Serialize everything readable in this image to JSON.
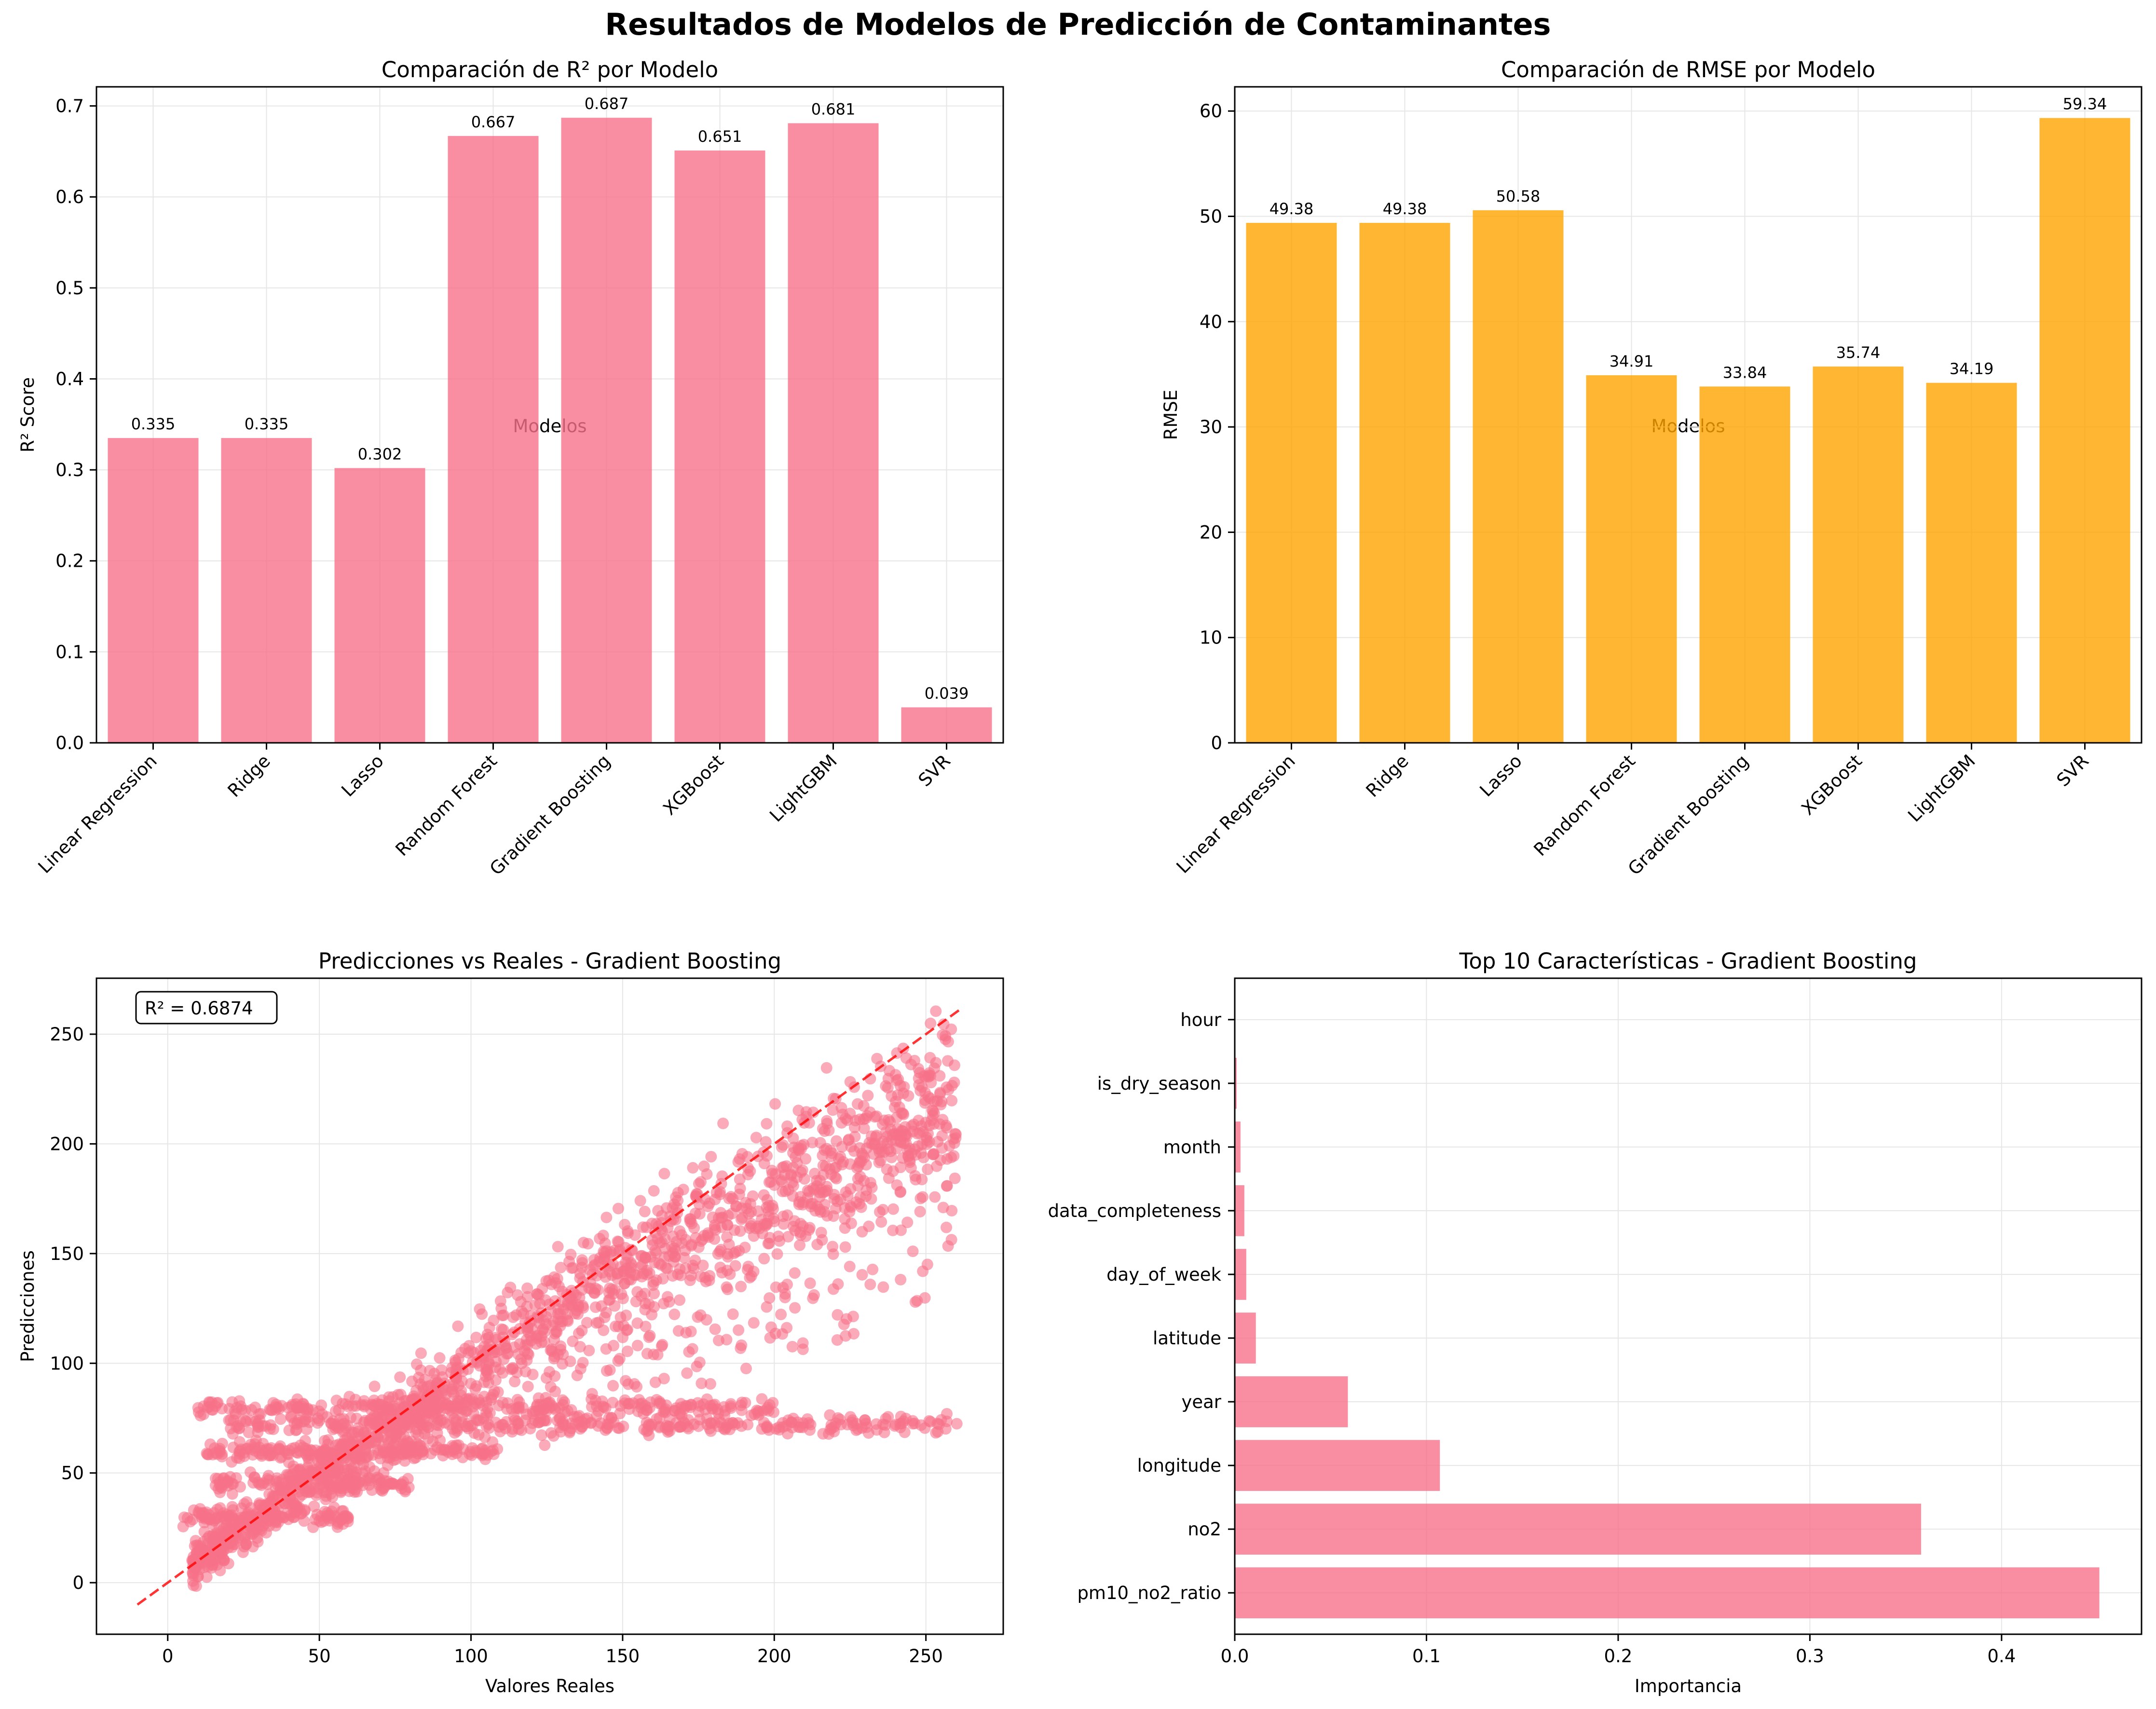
{
  "suptitle": "Resultados de Modelos de Predicción de Contaminantes",
  "colors": {
    "pink": "#f77189",
    "orange": "#ffa500",
    "red_line": "#ff0000",
    "grid": "#e6e6e6"
  },
  "chart_data": [
    {
      "type": "bar",
      "title": "Comparación de R² por Modelo",
      "xlabel": "Modelos",
      "ylabel": "R² Score",
      "categories": [
        "Linear Regression",
        "Ridge",
        "Lasso",
        "Random Forest",
        "Gradient Boosting",
        "XGBoost",
        "LightGBM",
        "SVR"
      ],
      "values": [
        0.335,
        0.335,
        0.302,
        0.667,
        0.687,
        0.651,
        0.681,
        0.039
      ],
      "value_labels": [
        "0.335",
        "0.335",
        "0.302",
        "0.667",
        "0.687",
        "0.651",
        "0.681",
        "0.039"
      ],
      "ylim": [
        0,
        0.721
      ],
      "yticks": [
        0.0,
        0.1,
        0.2,
        0.3,
        0.4,
        0.5,
        0.6,
        0.7
      ],
      "ytick_labels": [
        "0.0",
        "0.1",
        "0.2",
        "0.3",
        "0.4",
        "0.5",
        "0.6",
        "0.7"
      ],
      "color": "#f77189",
      "grid": true
    },
    {
      "type": "bar",
      "title": "Comparación de RMSE por Modelo",
      "xlabel": "Modelos",
      "ylabel": "RMSE",
      "categories": [
        "Linear Regression",
        "Ridge",
        "Lasso",
        "Random Forest",
        "Gradient Boosting",
        "XGBoost",
        "LightGBM",
        "SVR"
      ],
      "values": [
        49.38,
        49.38,
        50.58,
        34.91,
        33.84,
        35.74,
        34.19,
        59.34
      ],
      "value_labels": [
        "49.38",
        "49.38",
        "50.58",
        "34.91",
        "33.84",
        "35.74",
        "34.19",
        "59.34"
      ],
      "ylim": [
        0,
        62.3
      ],
      "yticks": [
        0,
        10,
        20,
        30,
        40,
        50,
        60
      ],
      "ytick_labels": [
        "0",
        "10",
        "20",
        "30",
        "40",
        "50",
        "60"
      ],
      "color": "#ffa500",
      "grid": true
    },
    {
      "type": "scatter",
      "title": "Predicciones vs Reales - Gradient Boosting",
      "xlabel": "Valores Reales",
      "ylabel": "Predicciones",
      "annotation": "R² = 0.6874",
      "xlim": [
        -23.5,
        275.5
      ],
      "ylim": [
        -23.5,
        275.5
      ],
      "xticks": [
        0,
        50,
        100,
        150,
        200,
        250
      ],
      "yticks": [
        0,
        50,
        100,
        150,
        200,
        250
      ],
      "reference_line": {
        "x": [
          -10,
          262
        ],
        "y": [
          -10,
          262
        ]
      },
      "points_description": "Approximately 3000 scattered points: main cluster along the diagonal, plus horizontal bands near predicted values 30, 60, 72 and 80.",
      "color": "#f77189",
      "grid": true
    },
    {
      "type": "bar",
      "orientation": "horizontal",
      "title": "Top 10 Características - Gradient Boosting",
      "xlabel": "Importancia",
      "categories": [
        "pm10_no2_ratio",
        "no2",
        "longitude",
        "year",
        "latitude",
        "day_of_week",
        "data_completeness",
        "month",
        "is_dry_season",
        "hour"
      ],
      "values": [
        0.451,
        0.358,
        0.107,
        0.059,
        0.011,
        0.006,
        0.005,
        0.003,
        0.001,
        0.0
      ],
      "xlim": [
        0,
        0.473
      ],
      "xticks": [
        0.0,
        0.1,
        0.2,
        0.3,
        0.4
      ],
      "xtick_labels": [
        "0.0",
        "0.1",
        "0.2",
        "0.3",
        "0.4"
      ],
      "color": "#f77189",
      "grid": true
    }
  ]
}
